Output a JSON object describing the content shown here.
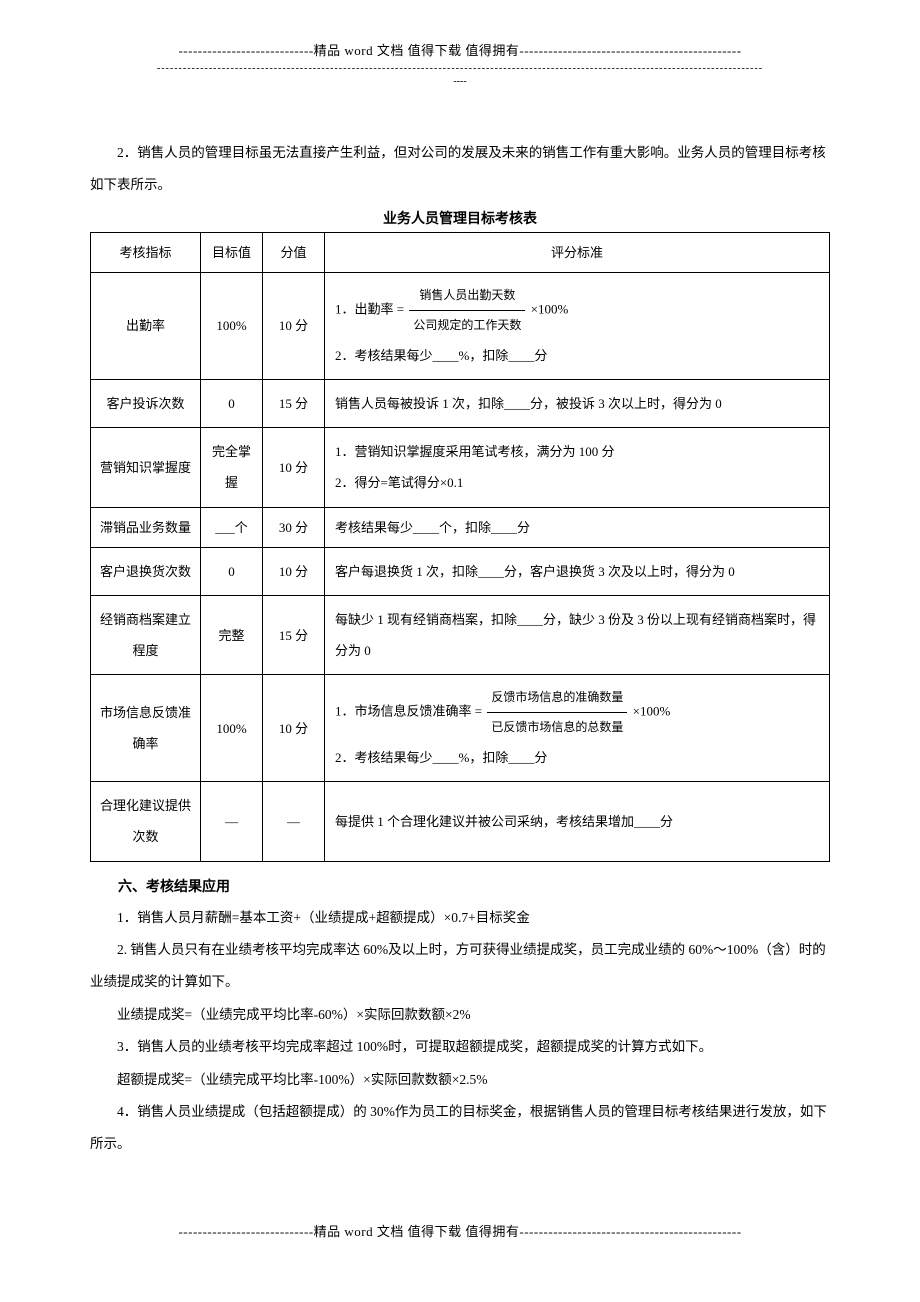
{
  "header": {
    "line1": "----------------------------精品 word 文档  值得下载  值得拥有----------------------------------------------",
    "line2": "--------------------------------------------------------------------------------------------------------------------------------------------",
    "line3": "----"
  },
  "intro": "2．销售人员的管理目标虽无法直接产生利益，但对公司的发展及未来的销售工作有重大影响。业务人员的管理目标考核如下表所示。",
  "tableTitle": "业务人员管理目标考核表",
  "headers": {
    "h1": "考核指标",
    "h2": "目标值",
    "h3": "分值",
    "h4": "评分标准"
  },
  "rows": [
    {
      "metric": "出勤率",
      "target": "100%",
      "score": "10 分",
      "std_line1_prefix": "1．出勤率 =",
      "std_frac_top": "销售人员出勤天数",
      "std_frac_bot": "公司规定的工作天数",
      "std_line1_suffix": "×100%",
      "std_line2": "2．考核结果每少____%，扣除____分"
    },
    {
      "metric": "客户投诉次数",
      "target": "0",
      "score": "15 分",
      "std": "销售人员每被投诉 1 次，扣除____分，被投诉 3 次以上时，得分为 0"
    },
    {
      "metric": "营销知识掌握度",
      "target": "完全掌握",
      "score": "10 分",
      "std_line1": "1．营销知识掌握度采用笔试考核，满分为 100 分",
      "std_line2": "2．得分=笔试得分×0.1"
    },
    {
      "metric": "滞销品业务数量",
      "target": "___个",
      "score": "30 分",
      "std": "考核结果每少____个，扣除____分"
    },
    {
      "metric": "客户退换货次数",
      "target": "0",
      "score": "10 分",
      "std": "客户每退换货 1 次，扣除____分，客户退换货 3 次及以上时，得分为 0"
    },
    {
      "metric": "经销商档案建立程度",
      "target": "完整",
      "score": "15 分",
      "std": "每缺少 1 现有经销商档案，扣除____分，缺少 3 份及 3 份以上现有经销商档案时，得分为 0"
    },
    {
      "metric": "市场信息反馈准确率",
      "target": "100%",
      "score": "10 分",
      "std_line1_prefix": "1．市场信息反馈准确率 =",
      "std_frac_top": "反馈市场信息的准确数量",
      "std_frac_bot": "已反馈市场信息的总数量",
      "std_line1_suffix": "×100%",
      "std_line2": "2．考核结果每少____%，扣除____分"
    },
    {
      "metric": "合理化建议提供次数",
      "target": "—",
      "score": "—",
      "std": "每提供 1 个合理化建议并被公司采纳，考核结果增加____分"
    }
  ],
  "section6": {
    "heading": "六、考核结果应用",
    "p1": "1．销售人员月薪酬=基本工资+（业绩提成+超额提成）×0.7+目标奖金",
    "p2": "2. 销售人员只有在业绩考核平均完成率达 60%及以上时，方可获得业绩提成奖，员工完成业绩的 60%～100%（含）时的业绩提成奖的计算如下。",
    "p3": "业绩提成奖=（业绩完成平均比率-60%）×实际回款数额×2%",
    "p4": "3．销售人员的业绩考核平均完成率超过 100%时，可提取超额提成奖，超额提成奖的计算方式如下。",
    "p5": "超额提成奖=（业绩完成平均比率-100%）×实际回款数额×2.5%",
    "p6": "4．销售人员业绩提成（包括超额提成）的 30%作为员工的目标奖金，根据销售人员的管理目标考核结果进行发放，如下所示。"
  },
  "footer": "----------------------------精品 word 文档  值得下载  值得拥有----------------------------------------------"
}
